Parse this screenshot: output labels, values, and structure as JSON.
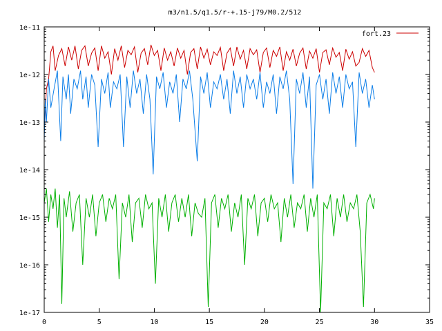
{
  "chart_data": {
    "type": "line",
    "title": "m3/n1.5/q1.5/r-+.15-j79/M0.2/512",
    "xlabel": "",
    "ylabel": "",
    "xlim": [
      0,
      35
    ],
    "ylim": [
      1e-17,
      1e-11
    ],
    "yscale": "log",
    "grid": false,
    "legend_position": "top-right",
    "xticks": [
      0,
      5,
      10,
      15,
      20,
      25,
      30,
      35
    ],
    "xtick_labels": [
      "0",
      "5",
      "10",
      "15",
      "20",
      "25",
      "30",
      "35"
    ],
    "yticks": [
      1e-17,
      1e-16,
      1e-15,
      1e-14,
      1e-13,
      1e-12,
      1e-11
    ],
    "ytick_labels": [
      "1e-17",
      "1e-16",
      "1e-15",
      "1e-14",
      "1e-13",
      "1e-12",
      "1e-11"
    ],
    "series": [
      {
        "name": "fort.23",
        "color": "#cc0000",
        "x": [
          0.0,
          0.2,
          0.4,
          0.6,
          0.8,
          1.0,
          1.3,
          1.6,
          1.9,
          2.2,
          2.5,
          2.8,
          3.1,
          3.4,
          3.7,
          4.0,
          4.3,
          4.6,
          4.9,
          5.2,
          5.5,
          5.8,
          6.1,
          6.4,
          6.7,
          7.0,
          7.3,
          7.6,
          7.9,
          8.2,
          8.5,
          8.8,
          9.1,
          9.4,
          9.7,
          10.0,
          10.3,
          10.6,
          10.9,
          11.2,
          11.5,
          11.8,
          12.1,
          12.4,
          12.7,
          13.0,
          13.3,
          13.6,
          13.9,
          14.2,
          14.5,
          14.8,
          15.1,
          15.4,
          15.7,
          16.0,
          16.3,
          16.6,
          16.9,
          17.2,
          17.5,
          17.8,
          18.1,
          18.4,
          18.7,
          19.0,
          19.3,
          19.6,
          19.9,
          20.2,
          20.5,
          20.8,
          21.1,
          21.4,
          21.7,
          22.0,
          22.3,
          22.6,
          22.9,
          23.2,
          23.5,
          23.8,
          24.1,
          24.4,
          24.7,
          25.0,
          25.3,
          25.6,
          25.9,
          26.2,
          26.5,
          26.8,
          27.1,
          27.4,
          27.7,
          28.0,
          28.3,
          28.6,
          28.9,
          29.2,
          29.5,
          29.8,
          30.0
        ],
        "y": [
          6e-14,
          5e-13,
          8e-13,
          3e-12,
          4e-12,
          1.2e-12,
          2.5e-12,
          3.5e-12,
          1.5e-12,
          3.8e-12,
          2e-12,
          4e-12,
          1.3e-12,
          3.2e-12,
          4e-12,
          1.5e-12,
          2.8e-12,
          3.6e-12,
          1.2e-12,
          4e-12,
          2.2e-12,
          3e-12,
          1e-12,
          3.5e-12,
          2e-12,
          4e-12,
          1.4e-12,
          3.2e-12,
          2.6e-12,
          3.8e-12,
          1.1e-12,
          2.8e-12,
          3.5e-12,
          1.6e-12,
          4.2e-12,
          2.5e-12,
          3.2e-12,
          1.2e-12,
          3.6e-12,
          2e-12,
          3e-12,
          1.5e-12,
          3.6e-12,
          2.2e-12,
          3.2e-12,
          1e-12,
          2.9e-12,
          3.5e-12,
          1.3e-12,
          3.8e-12,
          2.2e-12,
          3.4e-12,
          1.6e-12,
          3e-12,
          2.5e-12,
          3.7e-12,
          1.2e-12,
          2.8e-12,
          3.6e-12,
          1.5e-12,
          3.8e-12,
          2.1e-12,
          3.2e-12,
          1.3e-12,
          3.5e-12,
          2.6e-12,
          3.3e-12,
          1.1e-12,
          2.9e-12,
          3.6e-12,
          1.4e-12,
          3.2e-12,
          2.4e-12,
          3.8e-12,
          1.2e-12,
          3e-12,
          2e-12,
          3.4e-12,
          1.5e-12,
          2.8e-12,
          3.6e-12,
          1.3e-12,
          3.1e-12,
          2.2e-12,
          3.5e-12,
          1.1e-12,
          2.9e-12,
          3.3e-12,
          1.6e-12,
          3.6e-12,
          2.3e-12,
          2.9e-12,
          1.2e-12,
          3.4e-12,
          2.1e-12,
          3e-12,
          1.5e-12,
          1.8e-12,
          3.5e-12,
          2.4e-12,
          3.2e-12,
          1.4e-12,
          1.1e-12
        ]
      },
      {
        "name": "",
        "color": "#0a7de8",
        "x": [
          0.0,
          0.1,
          0.2,
          0.4,
          0.6,
          0.9,
          1.2,
          1.5,
          1.7,
          2.0,
          2.2,
          2.4,
          2.7,
          3.0,
          3.3,
          3.5,
          3.8,
          4.0,
          4.3,
          4.6,
          4.9,
          5.2,
          5.5,
          5.8,
          6.0,
          6.3,
          6.6,
          6.9,
          7.2,
          7.5,
          7.8,
          8.1,
          8.4,
          8.7,
          9.0,
          9.3,
          9.6,
          9.9,
          10.2,
          10.5,
          10.8,
          11.1,
          11.4,
          11.7,
          12.0,
          12.3,
          12.6,
          12.9,
          13.2,
          13.5,
          13.9,
          14.2,
          14.5,
          14.8,
          15.1,
          15.4,
          15.7,
          16.0,
          16.3,
          16.6,
          16.9,
          17.2,
          17.5,
          17.8,
          18.1,
          18.4,
          18.7,
          19.0,
          19.3,
          19.6,
          19.9,
          20.2,
          20.5,
          20.8,
          21.1,
          21.4,
          21.7,
          22.0,
          22.3,
          22.6,
          22.9,
          23.2,
          23.5,
          23.8,
          24.1,
          24.4,
          24.7,
          25.0,
          25.3,
          25.6,
          25.9,
          26.2,
          26.5,
          26.8,
          27.1,
          27.4,
          27.7,
          28.0,
          28.3,
          28.6,
          28.9,
          29.2,
          29.5,
          29.8,
          30.0
        ],
        "y": [
          4e-14,
          3e-13,
          1e-13,
          8e-13,
          2e-13,
          5e-13,
          1.2e-12,
          4e-14,
          9e-13,
          3e-13,
          1e-12,
          1.5e-13,
          8e-13,
          5e-13,
          1.2e-12,
          3e-13,
          9e-13,
          2e-13,
          1e-12,
          6e-13,
          3e-14,
          8e-13,
          4e-13,
          1.1e-12,
          2e-13,
          7e-13,
          5e-13,
          1e-12,
          3e-14,
          9e-13,
          2e-13,
          1.2e-12,
          4e-13,
          8e-13,
          1.5e-13,
          1e-12,
          3e-13,
          8e-15,
          9e-13,
          5e-13,
          1.1e-12,
          2e-13,
          7e-13,
          4e-13,
          1e-12,
          1e-13,
          8e-13,
          5e-13,
          1.2e-12,
          3e-13,
          1.5e-14,
          9e-13,
          4e-13,
          1.1e-12,
          2e-13,
          7e-13,
          5e-13,
          1e-12,
          3e-13,
          8e-13,
          1.5e-13,
          1.2e-12,
          4e-13,
          9e-13,
          2e-13,
          1e-12,
          5e-13,
          8e-13,
          3e-13,
          1.1e-12,
          2e-13,
          7e-13,
          4e-13,
          1e-12,
          1.5e-13,
          9e-13,
          5e-13,
          1.2e-12,
          3e-13,
          5e-15,
          8e-13,
          4e-13,
          1.1e-12,
          2e-13,
          9e-13,
          4e-15,
          6e-13,
          1e-12,
          3e-13,
          8e-13,
          1.5e-13,
          1.1e-12,
          4e-13,
          9e-13,
          2e-13,
          1e-12,
          5e-13,
          7e-13,
          3e-14,
          1.1e-12,
          4e-13,
          8e-13,
          2e-13,
          6e-13,
          3e-13
        ]
      },
      {
        "name": "",
        "color": "#00b000",
        "x": [
          0.0,
          0.2,
          0.4,
          0.6,
          0.8,
          1.0,
          1.2,
          1.4,
          1.6,
          1.8,
          2.0,
          2.3,
          2.6,
          2.9,
          3.2,
          3.5,
          3.8,
          4.1,
          4.4,
          4.7,
          5.0,
          5.3,
          5.6,
          5.9,
          6.2,
          6.5,
          6.8,
          7.1,
          7.4,
          7.7,
          8.0,
          8.3,
          8.6,
          8.9,
          9.2,
          9.5,
          9.8,
          10.1,
          10.4,
          10.7,
          11.0,
          11.3,
          11.6,
          11.9,
          12.2,
          12.5,
          12.8,
          13.1,
          13.4,
          13.7,
          14.0,
          14.3,
          14.6,
          14.9,
          15.2,
          15.5,
          15.8,
          16.1,
          16.4,
          16.7,
          17.0,
          17.3,
          17.6,
          17.9,
          18.2,
          18.5,
          18.8,
          19.1,
          19.4,
          19.7,
          20.0,
          20.3,
          20.6,
          20.9,
          21.2,
          21.5,
          21.8,
          22.1,
          22.4,
          22.7,
          23.0,
          23.3,
          23.6,
          23.9,
          24.2,
          24.5,
          24.8,
          25.1,
          25.4,
          25.7,
          26.0,
          26.3,
          26.6,
          26.9,
          27.2,
          27.5,
          27.8,
          28.1,
          28.4,
          28.7,
          29.0,
          29.3,
          29.6,
          29.9,
          30.0
        ],
        "y": [
          2e-15,
          4e-15,
          8e-16,
          3e-15,
          1.5e-15,
          4e-15,
          6e-16,
          3e-15,
          1.5e-17,
          2.5e-15,
          1e-15,
          3.5e-15,
          5e-16,
          2e-15,
          3e-15,
          1e-16,
          2.5e-15,
          1e-15,
          3e-15,
          4e-16,
          2e-15,
          3e-15,
          8e-16,
          2.5e-15,
          1.5e-15,
          3e-15,
          5e-17,
          2e-15,
          1e-15,
          3e-15,
          3e-16,
          2e-15,
          2.5e-15,
          6e-16,
          3e-15,
          1.5e-15,
          2e-15,
          4e-17,
          2.5e-15,
          1e-15,
          3e-15,
          5e-16,
          2e-15,
          3e-15,
          8e-16,
          2.5e-15,
          1e-15,
          3e-15,
          4e-16,
          2e-15,
          1.2e-15,
          1e-15,
          2.5e-15,
          1.3e-17,
          2e-15,
          3e-15,
          6e-16,
          2.5e-15,
          1.5e-15,
          3e-15,
          5e-16,
          2e-15,
          1e-15,
          3e-15,
          1e-16,
          2.5e-15,
          1.5e-15,
          3e-15,
          4e-16,
          2e-15,
          2.5e-15,
          8e-16,
          3e-15,
          1.5e-15,
          2e-15,
          3e-16,
          2.5e-15,
          1e-15,
          3e-15,
          6e-16,
          2e-15,
          1.5e-15,
          3e-15,
          5e-16,
          2.5e-15,
          1e-15,
          3e-15,
          1e-17,
          2e-15,
          1.5e-15,
          3e-15,
          4e-16,
          2.5e-15,
          1e-15,
          3e-15,
          8e-16,
          2e-15,
          1.5e-15,
          3e-15,
          5e-16,
          1.3e-17,
          2e-15,
          3e-15,
          1.5e-15,
          2.5e-15
        ]
      }
    ]
  }
}
